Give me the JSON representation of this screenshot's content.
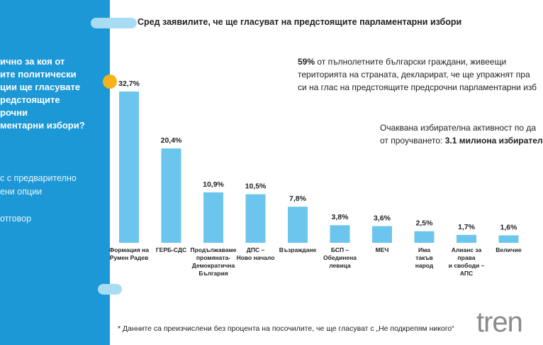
{
  "chart_data": {
    "type": "bar",
    "title": "Сред заявилите, че ще гласуват на предстоящите парламентарни избори",
    "categories": [
      "Формация на\nРумен Радев",
      "ГЕРБ-СДС",
      "Продължаваме\nпромяната-\nДемократична\nБългария",
      "ДПС –\nНово начало",
      "Възраждане",
      "БСП –\nОбединена\nлевица",
      "МЕЧ",
      "Има\nтакъв\nнарод",
      "Алианс за\nправа\nи свободи –\nАПС",
      "Величие"
    ],
    "values": [
      32.7,
      20.4,
      10.9,
      10.5,
      7.8,
      3.8,
      3.6,
      2.5,
      1.7,
      1.6
    ],
    "value_labels": [
      "32,7%",
      "20,4%",
      "10,9%",
      "10,5%",
      "7,8%",
      "3,8%",
      "3,6%",
      "2,5%",
      "1,7%",
      "1,6%"
    ],
    "color": "#6cc5ec"
  },
  "question": [
    "ично за коя от",
    "ите политически",
    "ции ще гласувате",
    "редстоящите",
    "рочни",
    "ментарни избори?"
  ],
  "options": [
    "с с предварително",
    "ени опции",
    "",
    "отговор"
  ],
  "info": {
    "percent": "59%",
    "lines": [
      "от пълнолетните български граждани, живеещи",
      "територията на страната, декларират, че ще упражнят пра",
      "си на глас на предстоящите предсрочни парламентарни изб"
    ]
  },
  "turnout": {
    "line1": "Очаквана избирателна активност по да",
    "line2": "от проучването:",
    "figure": "3.1 милиона избирател"
  },
  "footnote": "* Данните са преизчислени без процента на посочилите, че ще гласуват с „Не подкрепям никого“",
  "logo": "tren"
}
